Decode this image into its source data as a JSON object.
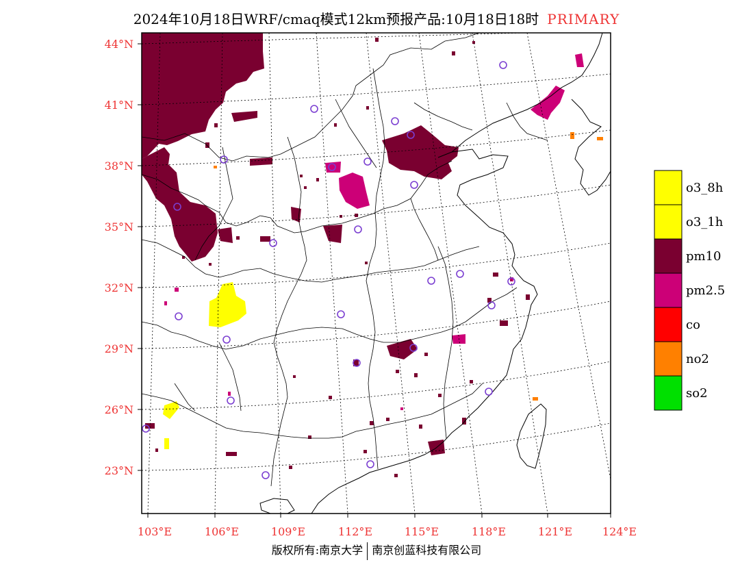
{
  "title": "2024年10月18日WRF/cmaq模式12km预报产品:10月18日18时",
  "badge": "PRIMARY",
  "copyright_left": "版权所有:南京大学",
  "copyright_right": "南京创蓝科技有限公司",
  "lat_ticks": [
    "44°N",
    "41°N",
    "38°N",
    "35°N",
    "32°N",
    "29°N",
    "26°N",
    "23°N"
  ],
  "lon_ticks": [
    "103°E",
    "106°E",
    "109°E",
    "112°E",
    "115°E",
    "118°E",
    "121°E",
    "124°E"
  ],
  "legend": [
    {
      "label": "o3_8h",
      "color": "#ffff00"
    },
    {
      "label": "o3_1h",
      "color": "#ffff00"
    },
    {
      "label": "pm10",
      "color": "#7a0030"
    },
    {
      "label": "pm2.5",
      "color": "#cc0077"
    },
    {
      "label": "co",
      "color": "#ff0000"
    },
    {
      "label": "no2",
      "color": "#ff8000"
    },
    {
      "label": "so2",
      "color": "#00e000"
    }
  ],
  "colors": {
    "label_red": "#ee3333",
    "station_ring": "#7b3fd1"
  }
}
